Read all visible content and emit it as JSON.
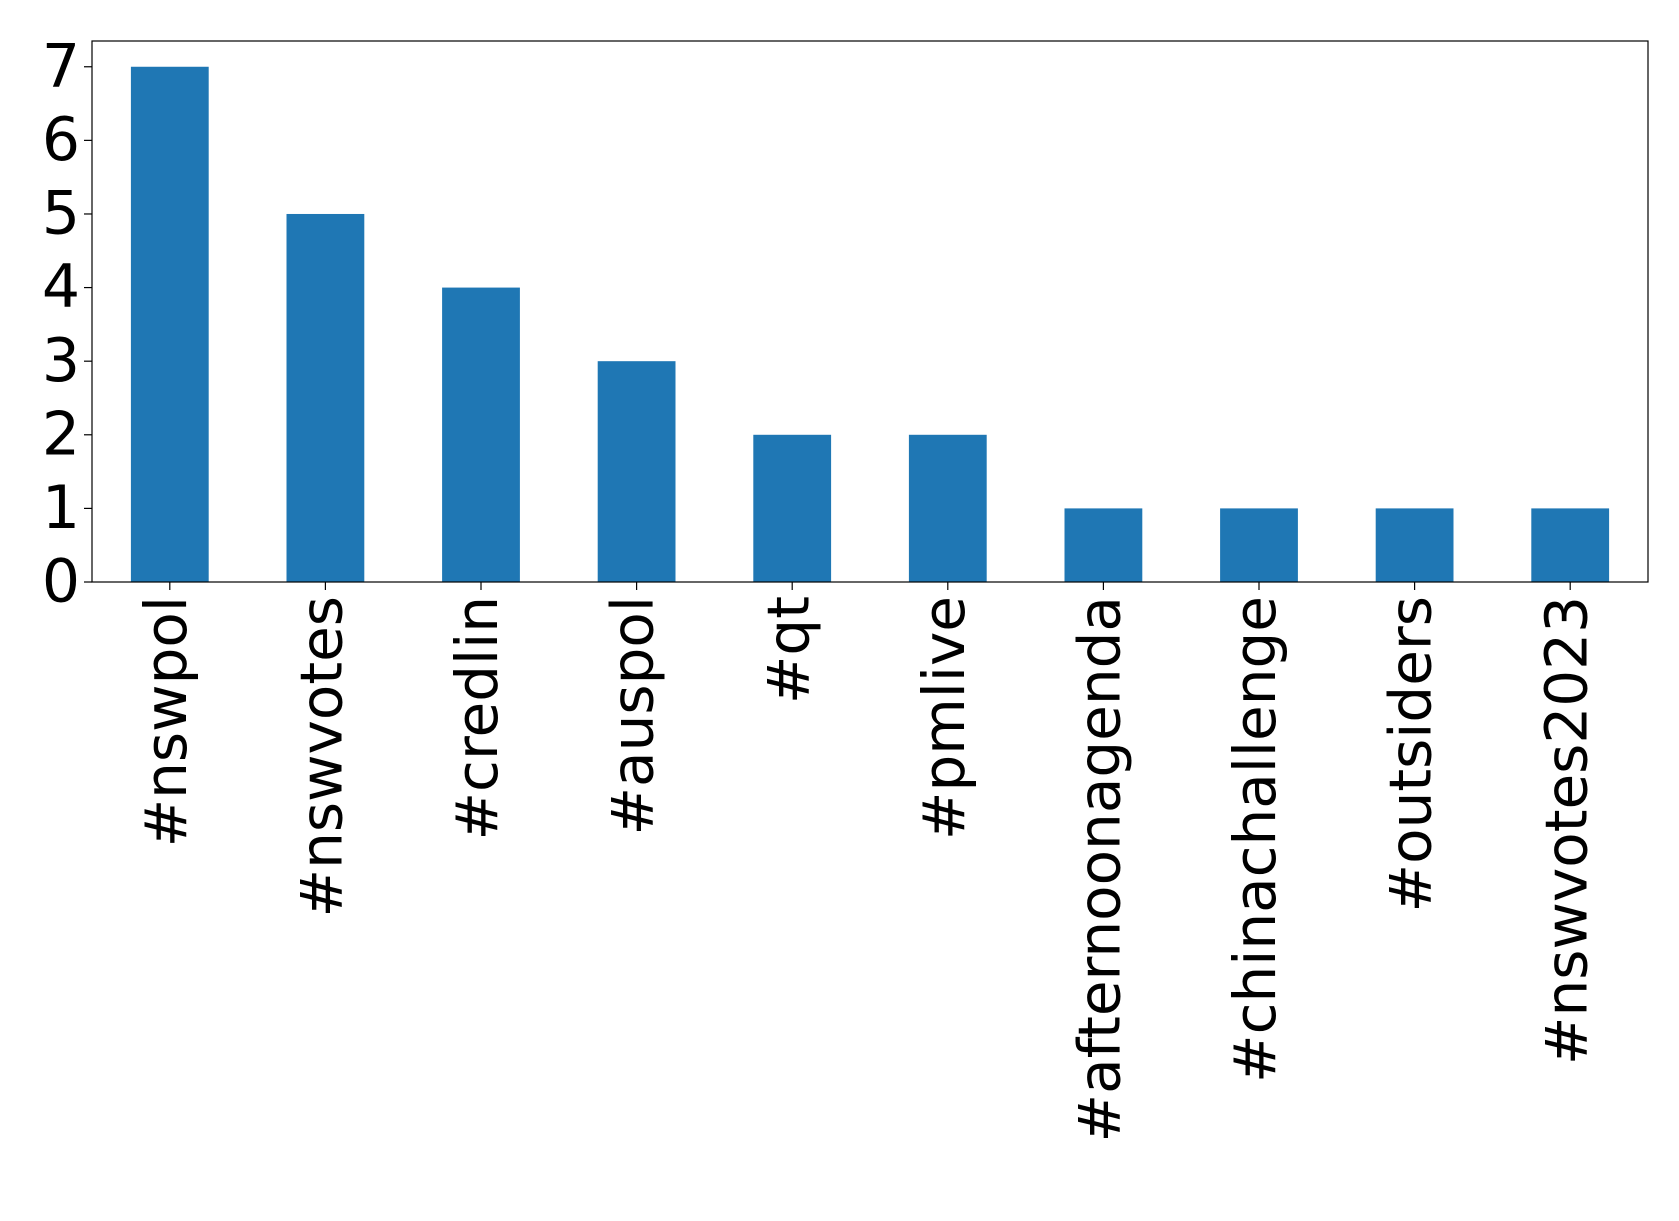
{
  "chart_data": {
    "type": "bar",
    "categories": [
      "#nswpol",
      "#nswvotes",
      "#credlin",
      "#auspol",
      "#qt",
      "#pmlive",
      "#afternoonagenda",
      "#chinachallenge",
      "#outsiders",
      "#nswvotes2023"
    ],
    "values": [
      7,
      5,
      4,
      3,
      2,
      2,
      1,
      1,
      1,
      1
    ],
    "color": "#1f77b4",
    "ylim": [
      0,
      7.35
    ],
    "yticks": [
      0,
      1,
      2,
      3,
      4,
      5,
      6,
      7
    ],
    "grid": false
  }
}
